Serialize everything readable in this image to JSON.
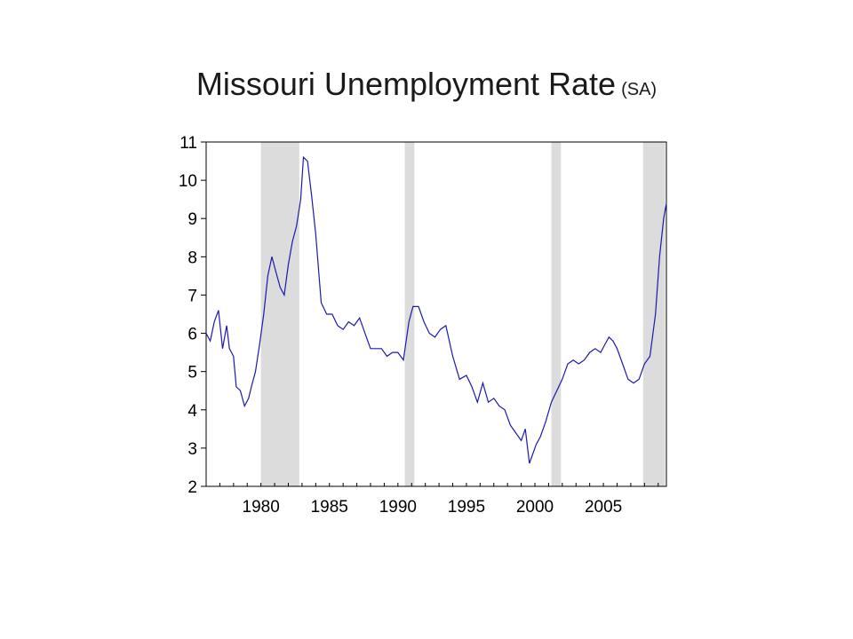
{
  "title": {
    "main": "Missouri Unemployment Rate",
    "sub": "(SA)"
  },
  "chart_data": {
    "type": "line",
    "title": "Missouri Unemployment Rate (SA)",
    "xlabel": "",
    "ylabel": "",
    "xlim": [
      1976.0,
      2009.6
    ],
    "ylim": [
      2,
      11
    ],
    "y_ticks": [
      2,
      3,
      4,
      5,
      6,
      7,
      8,
      9,
      10,
      11
    ],
    "x_tick_labels": [
      "1980",
      "1985",
      "1990",
      "1995",
      "2000",
      "2005"
    ],
    "x_tick_values": [
      1980,
      1985,
      1990,
      1995,
      2000,
      2005
    ],
    "grid": false,
    "line_color": "#1a1ab0",
    "recession_color": "#dcdcdc",
    "recessions": [
      [
        1980.0,
        1982.8
      ],
      [
        1990.5,
        1991.2
      ],
      [
        2001.2,
        2001.9
      ],
      [
        2007.9,
        2009.5
      ]
    ],
    "series": [
      {
        "name": "",
        "x": [
          1976.0,
          1976.3,
          1976.6,
          1976.9,
          1977.2,
          1977.5,
          1977.7,
          1978.0,
          1978.2,
          1978.5,
          1978.8,
          1979.1,
          1979.3,
          1979.6,
          1979.9,
          1980.2,
          1980.5,
          1980.8,
          1981.1,
          1981.4,
          1981.7,
          1982.0,
          1982.3,
          1982.6,
          1982.9,
          1983.1,
          1983.4,
          1983.7,
          1984.0,
          1984.4,
          1984.8,
          1985.2,
          1985.6,
          1986.0,
          1986.4,
          1986.8,
          1987.2,
          1987.6,
          1988.0,
          1988.4,
          1988.8,
          1989.2,
          1989.6,
          1990.0,
          1990.4,
          1990.8,
          1991.1,
          1991.5,
          1991.9,
          1992.3,
          1992.7,
          1993.1,
          1993.5,
          1994.0,
          1994.5,
          1995.0,
          1995.4,
          1995.8,
          1996.2,
          1996.6,
          1997.0,
          1997.4,
          1997.8,
          1998.2,
          1998.6,
          1999.0,
          1999.3,
          1999.6,
          1999.8,
          2000.1,
          2000.4,
          2000.8,
          2001.2,
          2001.6,
          2002.0,
          2002.4,
          2002.8,
          2003.2,
          2003.6,
          2004.0,
          2004.4,
          2004.8,
          2005.1,
          2005.4,
          2005.7,
          2006.0,
          2006.4,
          2006.8,
          2007.2,
          2007.6,
          2008.0,
          2008.4,
          2008.8,
          2009.1,
          2009.4,
          2009.6
        ],
        "values": [
          6.0,
          5.8,
          6.3,
          6.6,
          5.6,
          6.2,
          5.6,
          5.4,
          4.6,
          4.5,
          4.1,
          4.3,
          4.6,
          5.0,
          5.7,
          6.5,
          7.5,
          8.0,
          7.6,
          7.2,
          7.0,
          7.8,
          8.4,
          8.8,
          9.5,
          10.6,
          10.5,
          9.6,
          8.6,
          6.8,
          6.5,
          6.5,
          6.2,
          6.1,
          6.3,
          6.2,
          6.4,
          6.0,
          5.6,
          5.6,
          5.6,
          5.4,
          5.5,
          5.5,
          5.3,
          6.3,
          6.7,
          6.7,
          6.3,
          6.0,
          5.9,
          6.1,
          6.2,
          5.4,
          4.8,
          4.9,
          4.6,
          4.2,
          4.7,
          4.2,
          4.3,
          4.1,
          4.0,
          3.6,
          3.4,
          3.2,
          3.5,
          2.6,
          2.8,
          3.1,
          3.3,
          3.7,
          4.2,
          4.5,
          4.8,
          5.2,
          5.3,
          5.2,
          5.3,
          5.5,
          5.6,
          5.5,
          5.7,
          5.9,
          5.8,
          5.6,
          5.2,
          4.8,
          4.7,
          4.8,
          5.2,
          5.4,
          6.5,
          8.0,
          9.0,
          9.4
        ]
      }
    ]
  }
}
